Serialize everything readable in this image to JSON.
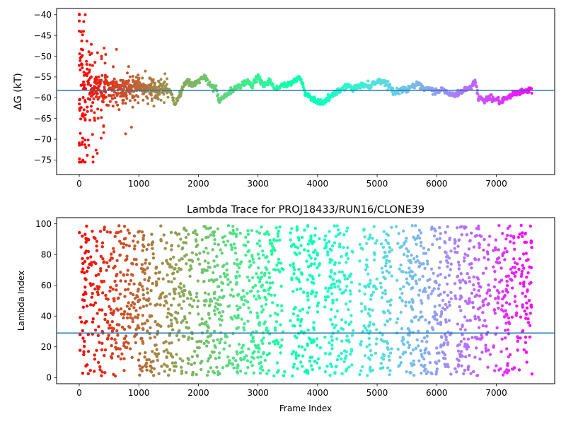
{
  "chart_data": [
    {
      "type": "scatter",
      "title": "",
      "xlabel": "",
      "ylabel": "ΔG (kT)",
      "xlim": [
        -380,
        7980
      ],
      "ylim": [
        -78.5,
        -38.5
      ],
      "xticks": [
        0,
        1000,
        2000,
        3000,
        4000,
        5000,
        6000,
        7000
      ],
      "xtick_labels": [
        "0",
        "1000",
        "2000",
        "3000",
        "4000",
        "5000",
        "6000",
        "7000"
      ],
      "yticks": [
        -40,
        -45,
        -50,
        -55,
        -60,
        -65,
        -70,
        -75
      ],
      "ytick_labels": [
        "−40",
        "−45",
        "−50",
        "−55",
        "−60",
        "−65",
        "−70",
        "−75"
      ],
      "colormap": "rainbow (color encodes frame index, red at start → violet at end)",
      "grid": false,
      "hline": {
        "y": -58.2,
        "color": "#1f77b4"
      },
      "series": [
        {
          "x": [
            0,
            20,
            40,
            60,
            80,
            100,
            120,
            150,
            180,
            200,
            250,
            300,
            350,
            400,
            450,
            500,
            600,
            700,
            800,
            900,
            1000,
            1100,
            1200,
            1300,
            1400,
            1500,
            1550,
            1600,
            1650,
            1700,
            1750,
            1800,
            1900,
            2000,
            2100,
            2200,
            2300,
            2350,
            2400,
            2500,
            2600,
            2700,
            2800,
            2900,
            3000,
            3100,
            3200,
            3300,
            3400,
            3500,
            3600,
            3700,
            3750,
            3800,
            3900,
            4000,
            4100,
            4200,
            4300,
            4400,
            4500,
            4600,
            4700,
            4800,
            4900,
            5000,
            5100,
            5200,
            5300,
            5400,
            5500,
            5600,
            5700,
            5800,
            5900,
            6000,
            6100,
            6200,
            6300,
            6400,
            6500,
            6600,
            6650,
            6700,
            6800,
            6900,
            7000,
            7100,
            7200,
            7300,
            7400,
            7500,
            7600
          ],
          "y": [
            -40,
            -72,
            -44,
            -64,
            -52,
            -62,
            -50,
            -58,
            -53,
            -60,
            -56,
            -59,
            -57,
            -61,
            -55,
            -58,
            -57,
            -59,
            -58,
            -57,
            -56,
            -58,
            -57,
            -59,
            -57,
            -58,
            -59,
            -62,
            -60,
            -59,
            -57,
            -56,
            -57,
            -56,
            -55,
            -57,
            -58,
            -61,
            -60,
            -59,
            -58,
            -57,
            -56,
            -57,
            -55,
            -57,
            -56,
            -58,
            -57,
            -57,
            -56,
            -55,
            -57,
            -59,
            -60,
            -61,
            -61,
            -60,
            -59,
            -58,
            -57,
            -58,
            -57,
            -57,
            -57,
            -56,
            -56,
            -57,
            -59,
            -58,
            -58,
            -57,
            -57,
            -58,
            -58,
            -58.5,
            -58,
            -59,
            -59.5,
            -58.5,
            -58,
            -57,
            -56,
            -60,
            -60.5,
            -60,
            -60.5,
            -61,
            -60,
            -59,
            -58.5,
            -58.5,
            -58
          ]
        }
      ]
    },
    {
      "type": "scatter",
      "title": "Lambda Trace for PROJ18433/RUN16/CLONE39",
      "xlabel": "Frame Index",
      "ylabel": "Lambda Index",
      "xlim": [
        -380,
        7980
      ],
      "ylim": [
        -4,
        104
      ],
      "xticks": [
        0,
        1000,
        2000,
        3000,
        4000,
        5000,
        6000,
        7000
      ],
      "xtick_labels": [
        "0",
        "1000",
        "2000",
        "3000",
        "4000",
        "5000",
        "6000",
        "7000"
      ],
      "yticks": [
        0,
        20,
        40,
        60,
        80,
        100
      ],
      "ytick_labels": [
        "0",
        "20",
        "40",
        "60",
        "80",
        "100"
      ],
      "colormap": "rainbow (color encodes frame index, red at start → violet at end)",
      "grid": false,
      "hline": {
        "y": 29,
        "color": "#1f77b4"
      },
      "x_range": [
        0,
        7600
      ],
      "y_range": [
        1,
        99
      ],
      "gaps": [
        [
          3450,
          3520
        ],
        [
          4050,
          4120
        ],
        [
          4600,
          4700
        ],
        [
          5000,
          5050
        ],
        [
          5250,
          5320
        ],
        [
          6250,
          6300
        ],
        [
          6900,
          6950
        ]
      ],
      "point_count": 2200
    }
  ]
}
